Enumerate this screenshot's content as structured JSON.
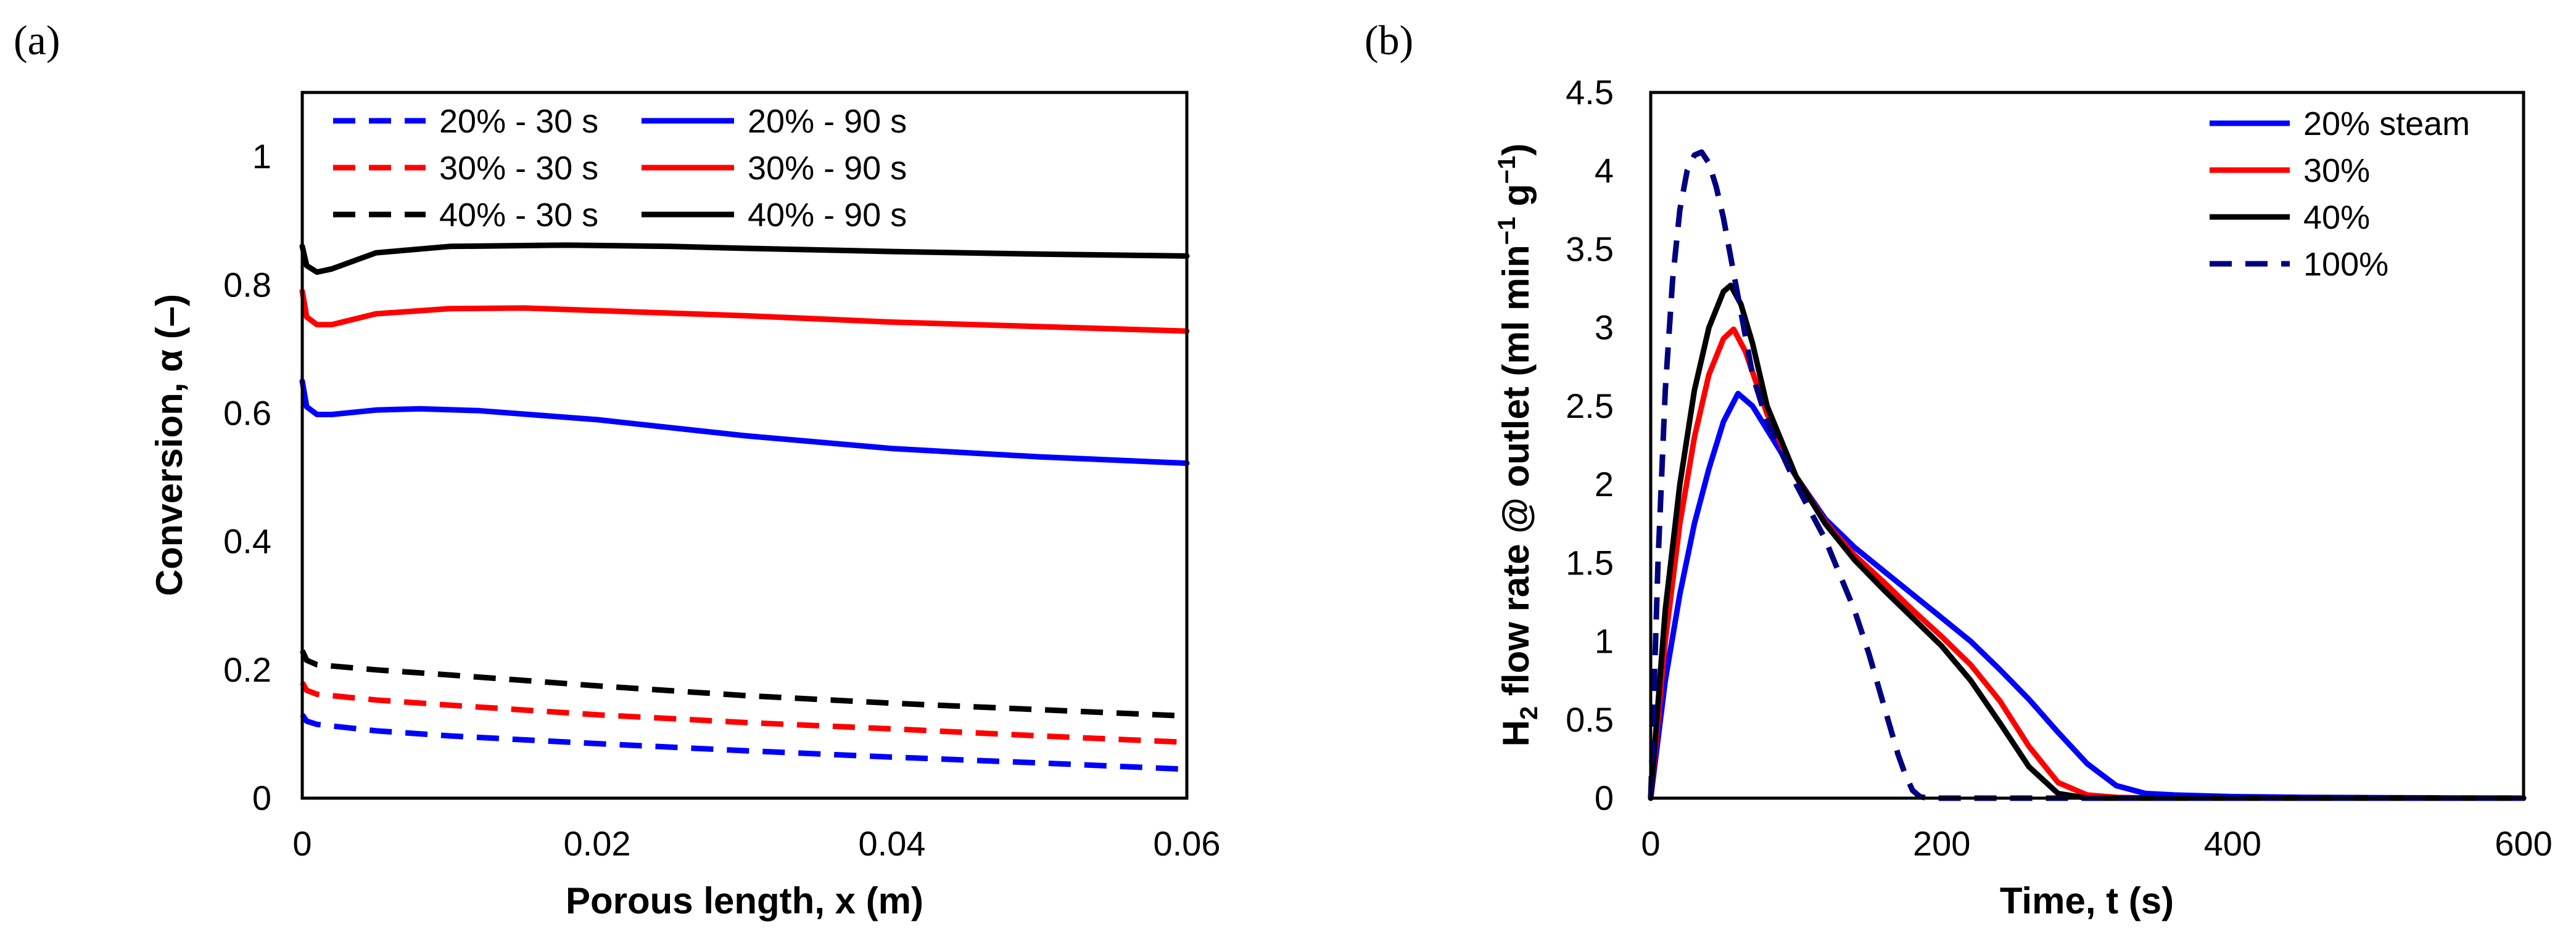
{
  "chart_data": [
    {
      "panel_label": "(a)",
      "type": "line",
      "xlabel": "Porous length, x (m)",
      "ylabel": "Conversion, α (–)",
      "xlim": [
        0,
        0.06
      ],
      "ylim": [
        0,
        1.1
      ],
      "x_ticks": [
        "0",
        "0.02",
        "0.04",
        "0.06"
      ],
      "y_ticks": [
        "0",
        "0.2",
        "0.4",
        "0.6",
        "0.8",
        "1"
      ],
      "legend_position": "top",
      "series": [
        {
          "name": "20% - 30 s",
          "color": "#0000FF",
          "dashed": true,
          "x": [
            0,
            0.0003,
            0.001,
            0.005,
            0.01,
            0.02,
            0.03,
            0.04,
            0.05,
            0.06
          ],
          "y": [
            0.13,
            0.12,
            0.115,
            0.105,
            0.097,
            0.085,
            0.074,
            0.064,
            0.055,
            0.045
          ]
        },
        {
          "name": "30% - 30 s",
          "color": "#FF0000",
          "dashed": true,
          "x": [
            0,
            0.0003,
            0.001,
            0.005,
            0.01,
            0.02,
            0.03,
            0.04,
            0.05,
            0.06
          ],
          "y": [
            0.18,
            0.168,
            0.162,
            0.153,
            0.145,
            0.13,
            0.118,
            0.108,
            0.097,
            0.087
          ]
        },
        {
          "name": "40% - 30 s",
          "color": "#000000",
          "dashed": true,
          "x": [
            0,
            0.0003,
            0.001,
            0.005,
            0.01,
            0.02,
            0.03,
            0.04,
            0.05,
            0.06
          ],
          "y": [
            0.23,
            0.215,
            0.208,
            0.2,
            0.192,
            0.175,
            0.16,
            0.148,
            0.138,
            0.128
          ]
        },
        {
          "name": "20% - 90 s",
          "color": "#0000FF",
          "dashed": false,
          "x": [
            0,
            0.0003,
            0.001,
            0.002,
            0.005,
            0.008,
            0.012,
            0.02,
            0.03,
            0.04,
            0.05,
            0.06
          ],
          "y": [
            0.65,
            0.61,
            0.598,
            0.598,
            0.605,
            0.607,
            0.604,
            0.59,
            0.565,
            0.545,
            0.532,
            0.522
          ]
        },
        {
          "name": "30% - 90 s",
          "color": "#FF0000",
          "dashed": false,
          "x": [
            0,
            0.0003,
            0.001,
            0.002,
            0.005,
            0.01,
            0.015,
            0.02,
            0.03,
            0.04,
            0.05,
            0.06
          ],
          "y": [
            0.79,
            0.75,
            0.738,
            0.738,
            0.755,
            0.763,
            0.764,
            0.76,
            0.752,
            0.742,
            0.735,
            0.728
          ]
        },
        {
          "name": "40% - 90 s",
          "color": "#000000",
          "dashed": false,
          "x": [
            0,
            0.0003,
            0.001,
            0.002,
            0.005,
            0.01,
            0.018,
            0.025,
            0.03,
            0.04,
            0.05,
            0.06
          ],
          "y": [
            0.86,
            0.83,
            0.82,
            0.825,
            0.85,
            0.86,
            0.862,
            0.86,
            0.857,
            0.852,
            0.848,
            0.845
          ]
        }
      ]
    },
    {
      "panel_label": "(b)",
      "type": "line",
      "xlabel": "Time, t (s)",
      "ylabel": "H2 flow rate @ outlet (ml min−1 g−1)",
      "ylabel_parts": {
        "h": "H",
        "sub": "2",
        "mid": " flow rate @ outlet (ml min",
        "sup1": "−1",
        "g": " g",
        "sup2": "−1",
        "end": ")"
      },
      "xlim": [
        0,
        600
      ],
      "ylim": [
        0,
        4.5
      ],
      "x_ticks": [
        "0",
        "200",
        "400",
        "600"
      ],
      "y_ticks": [
        "0",
        "0.5",
        "1",
        "1.5",
        "2",
        "2.5",
        "3",
        "3.5",
        "4",
        "4.5"
      ],
      "legend_position": "top-right",
      "series": [
        {
          "name": "20% steam",
          "color": "#0000FF",
          "dashed": false,
          "x": [
            0,
            10,
            20,
            30,
            40,
            50,
            60,
            70,
            80,
            100,
            120,
            140,
            160,
            180,
            200,
            220,
            240,
            260,
            280,
            300,
            320,
            340,
            360,
            400,
            450,
            500,
            550,
            600
          ],
          "y": [
            0,
            0.75,
            1.3,
            1.75,
            2.1,
            2.4,
            2.58,
            2.5,
            2.35,
            2.05,
            1.78,
            1.6,
            1.45,
            1.3,
            1.15,
            1.0,
            0.82,
            0.63,
            0.42,
            0.22,
            0.08,
            0.03,
            0.02,
            0.01,
            0.005,
            0.003,
            0.001,
            0
          ]
        },
        {
          "name": "30%",
          "color": "#FF0000",
          "dashed": false,
          "x": [
            0,
            10,
            20,
            30,
            40,
            50,
            57,
            65,
            80,
            100,
            120,
            140,
            160,
            180,
            200,
            220,
            240,
            260,
            280,
            300,
            320,
            350,
            600
          ],
          "y": [
            0,
            1.0,
            1.75,
            2.3,
            2.7,
            2.93,
            2.99,
            2.85,
            2.45,
            2.05,
            1.76,
            1.55,
            1.38,
            1.2,
            1.03,
            0.85,
            0.62,
            0.33,
            0.1,
            0.02,
            0.005,
            0.0,
            0
          ]
        },
        {
          "name": "40%",
          "color": "#000000",
          "dashed": false,
          "x": [
            0,
            10,
            20,
            30,
            40,
            50,
            55,
            62,
            70,
            80,
            100,
            120,
            140,
            160,
            180,
            200,
            220,
            240,
            260,
            280,
            300,
            320,
            600
          ],
          "y": [
            0,
            1.2,
            2.0,
            2.6,
            3.0,
            3.23,
            3.27,
            3.15,
            2.9,
            2.5,
            2.05,
            1.75,
            1.52,
            1.33,
            1.15,
            0.97,
            0.75,
            0.48,
            0.2,
            0.03,
            0.0,
            0.0,
            0
          ]
        },
        {
          "name": "100%",
          "color": "#000080",
          "dashed": true,
          "x": [
            0,
            5,
            10,
            15,
            20,
            25,
            30,
            35,
            40,
            45,
            50,
            55,
            60,
            70,
            80,
            100,
            120,
            140,
            150,
            160,
            170,
            175,
            180,
            185,
            190,
            200,
            600
          ],
          "y": [
            0,
            1.5,
            2.6,
            3.3,
            3.75,
            4.0,
            4.1,
            4.12,
            4.05,
            3.9,
            3.7,
            3.45,
            3.2,
            2.7,
            2.4,
            2.0,
            1.65,
            1.2,
            0.92,
            0.6,
            0.28,
            0.15,
            0.05,
            0.01,
            0.0,
            0.0,
            0
          ]
        }
      ]
    }
  ]
}
